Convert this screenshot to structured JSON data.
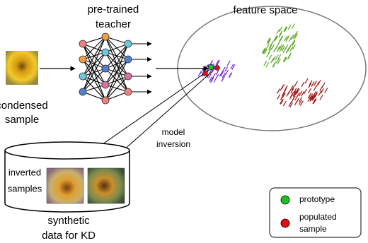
{
  "teacher": {
    "lines": [
      "pre-trained",
      "teacher"
    ]
  },
  "feature_space": {
    "title": "feature space"
  },
  "condensed": {
    "lines": [
      "condensed",
      "sample"
    ]
  },
  "inversion": {
    "lines": [
      "model",
      "inversion"
    ]
  },
  "database": {
    "inner_lines": [
      "inverted",
      "samples"
    ],
    "lines": [
      "synthetic",
      "data for KD"
    ]
  },
  "legend": {
    "prototype": "prototype",
    "populated": [
      "populated",
      "sample"
    ]
  }
}
